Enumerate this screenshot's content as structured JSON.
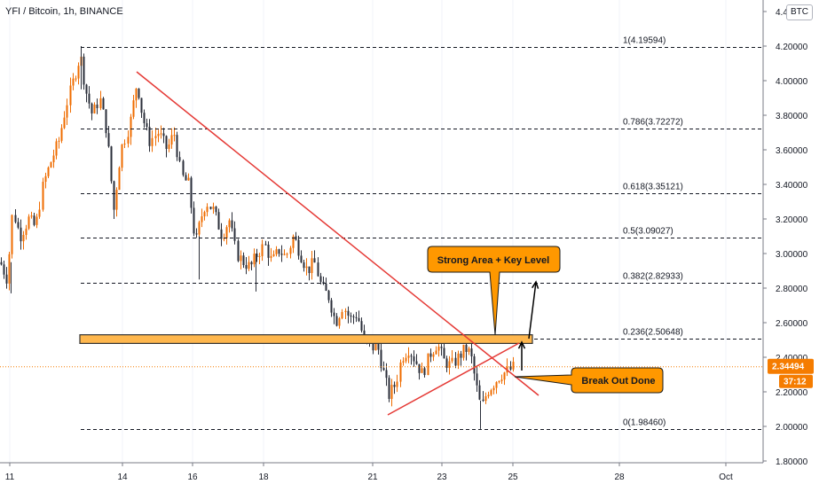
{
  "chart_data": {
    "type": "candlestick",
    "title": "YFI / Bitcoin, 1h, BINANCE",
    "currency_badge": "BTC",
    "x_ticks": [
      "11",
      "14",
      "16",
      "18",
      "21",
      "23",
      "25",
      "28",
      "Oct"
    ],
    "y_ticks": [
      "4.4",
      "4.20000",
      "4.00000",
      "3.80000",
      "3.60000",
      "3.40000",
      "3.20000",
      "3.00000",
      "2.80000",
      "2.60000",
      "2.40000",
      "2.20000",
      "2.00000",
      "1.80000"
    ],
    "ylim": [
      1.8,
      4.4
    ],
    "fib_levels": [
      {
        "label": "1(4.19594)",
        "value": 4.19594
      },
      {
        "label": "0.786(3.72272)",
        "value": 3.72272
      },
      {
        "label": "0.618(3.35121)",
        "value": 3.35121
      },
      {
        "label": "0.5(3.09027)",
        "value": 3.09027
      },
      {
        "label": "0.382(2.82933)",
        "value": 2.82933
      },
      {
        "label": "0.236(2.50648)",
        "value": 2.50648
      },
      {
        "label": "0(1.98460)",
        "value": 1.9846
      }
    ],
    "current_price": {
      "label": "2.34494",
      "value": 2.34494,
      "countdown": "37:12"
    },
    "annotations": [
      "Strong Area + Key Level",
      "Break Out Done"
    ],
    "key_level_zone": [
      2.48,
      2.53
    ],
    "colors": {
      "up": "#ef6c00",
      "down": "#2a2e39",
      "trendline": "#e53935",
      "zone": "#ffb74d",
      "callout": "#ff9800",
      "price_tag": "#f57c00"
    }
  }
}
